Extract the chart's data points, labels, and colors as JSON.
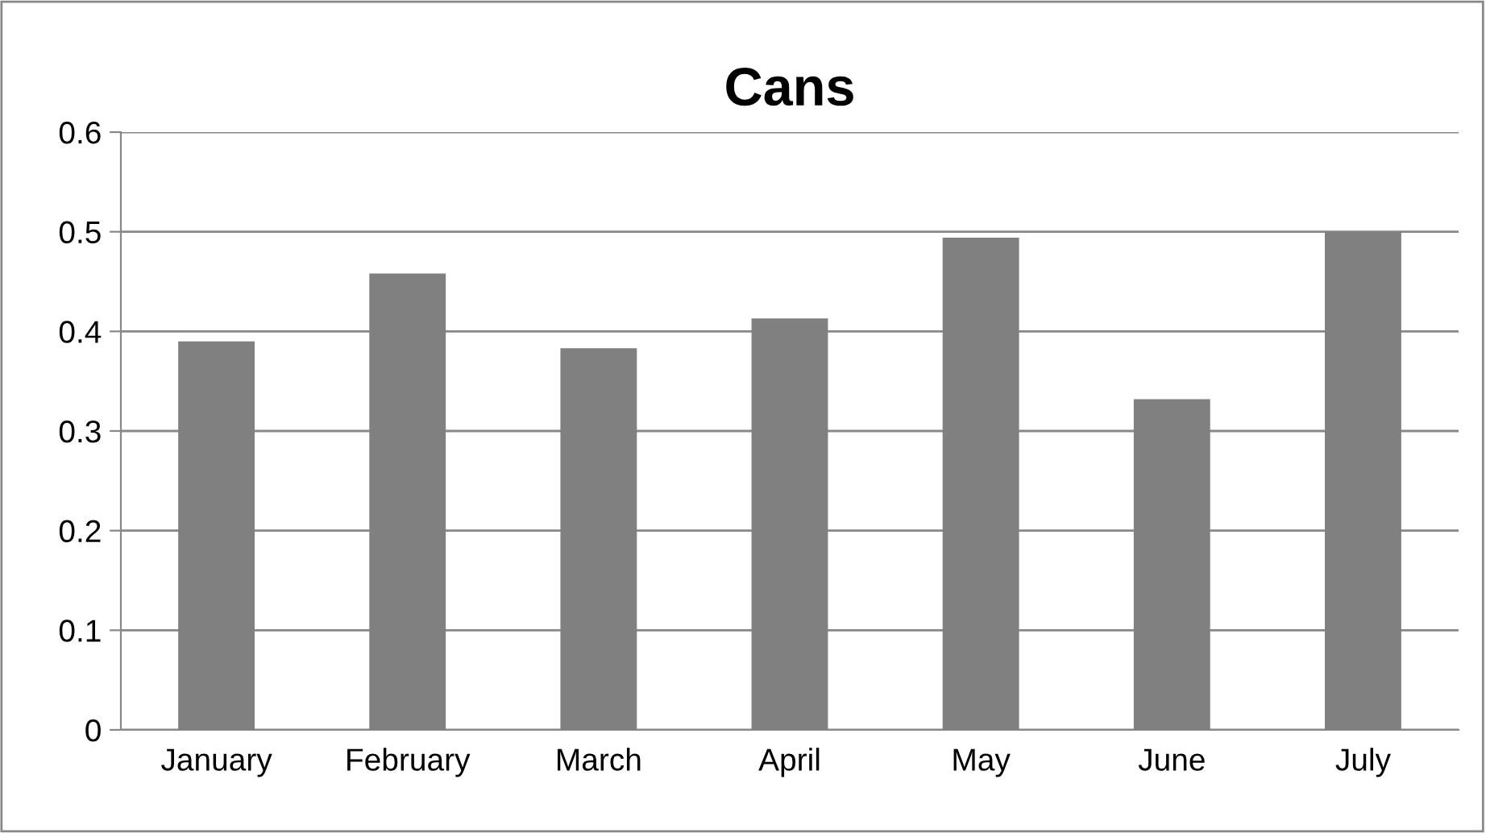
{
  "chart_data": {
    "type": "bar",
    "title": "Cans",
    "categories": [
      "January",
      "February",
      "March",
      "April",
      "May",
      "June",
      "July"
    ],
    "values": [
      0.39,
      0.458,
      0.383,
      0.413,
      0.494,
      0.332,
      0.5
    ],
    "color": "#808080",
    "ylim": [
      0,
      0.6
    ],
    "yticks": [
      {
        "value": 0,
        "label": "0"
      },
      0.1,
      0.2,
      0.3,
      0.4,
      0.5,
      0.6
    ],
    "grid": "y",
    "legend": false
  }
}
